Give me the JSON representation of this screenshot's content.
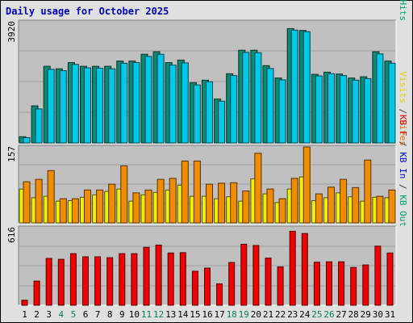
{
  "chart_data": {
    "title": "Daily usage for October 2025",
    "type": "bar",
    "days": [
      "1",
      "2",
      "3",
      "4",
      "5",
      "6",
      "7",
      "8",
      "9",
      "10",
      "11",
      "12",
      "13",
      "14",
      "15",
      "16",
      "17",
      "18",
      "19",
      "20",
      "21",
      "22",
      "23",
      "24",
      "25",
      "26",
      "27",
      "28",
      "29",
      "30",
      "31"
    ],
    "weekend_days": [
      "4",
      "5",
      "11",
      "12",
      "18",
      "19",
      "25",
      "26"
    ],
    "panels": [
      {
        "ymax_label": "3920",
        "ymax": 3920,
        "right_label": [
          {
            "text": "Pages",
            "color": "#00c0e0"
          },
          {
            "text": " / ",
            "color": "#404040"
          },
          {
            "text": "Files",
            "color": "#0000d0"
          },
          {
            "text": " / ",
            "color": "#404040"
          },
          {
            "text": "Hits",
            "color": "#00a070"
          }
        ],
        "series": [
          {
            "name": "Hits",
            "color": "#0d8a72",
            "values": [
              200,
              1200,
              2480,
              2400,
              2600,
              2480,
              2480,
              2480,
              2650,
              2650,
              2870,
              2950,
              2600,
              2680,
              1950,
              2030,
              1420,
              2240,
              3000,
              3000,
              2500,
              2100,
              3700,
              3640,
              2220,
              2290,
              2230,
              2100,
              2140,
              2950,
              2650
            ]
          },
          {
            "name": "Files",
            "color": "#00c8e8",
            "values": [
              170,
              1100,
              2380,
              2340,
              2540,
              2430,
              2420,
              2400,
              2580,
              2600,
              2800,
              2870,
              2520,
              2590,
              1880,
              1980,
              1350,
              2180,
              2930,
              2920,
              2410,
              2040,
              3650,
              3600,
              2170,
              2240,
              2180,
              2030,
              2080,
              2880,
              2580
            ]
          }
        ]
      },
      {
        "ymax_label": "157",
        "ymax": 157,
        "right_label": [
          {
            "text": "Visits",
            "color": "#e0d000"
          },
          {
            "text": " / ",
            "color": "#404040"
          },
          {
            "text": "Sites",
            "color": "#e07000"
          }
        ],
        "series": [
          {
            "name": "Visits",
            "color": "#f0f000",
            "values": [
              70,
              52,
              55,
              45,
              46,
              53,
              58,
              65,
              70,
              45,
              58,
              63,
              68,
              78,
              55,
              55,
              50,
              54,
              45,
              91,
              60,
              42,
              70,
              95,
              46,
              52,
              62,
              54,
              45,
              53,
              52
            ]
          },
          {
            "name": "Sites",
            "color": "#f08c00",
            "values": [
              85,
              90,
              108,
              50,
              50,
              68,
              68,
              80,
              118,
              62,
              68,
              90,
              92,
              128,
              128,
              80,
              82,
              83,
              66,
              144,
              70,
              50,
              92,
              157,
              60,
              74,
              90,
              73,
              130,
              55,
              68
            ]
          }
        ]
      },
      {
        "ymax_label": "616",
        "ymax": 616,
        "right_label": [
          {
            "text": "KB F",
            "color": "#e00000"
          },
          {
            "text": " / ",
            "color": "#404040"
          },
          {
            "text": "KB In",
            "color": "#0000d0"
          },
          {
            "text": " / ",
            "color": "#404040"
          },
          {
            "text": "KB Out",
            "color": "#00a070"
          }
        ],
        "series": [
          {
            "name": "KB F",
            "color": "#f00000",
            "values": [
              40,
              192,
              372,
              365,
              410,
              385,
              385,
              378,
              410,
              410,
              460,
              478,
              415,
              418,
              270,
              295,
              170,
              340,
              485,
              475,
              375,
              305,
              588,
              570,
              342,
              345,
              345,
              300,
              320,
              470,
              415
            ]
          }
        ]
      }
    ]
  }
}
